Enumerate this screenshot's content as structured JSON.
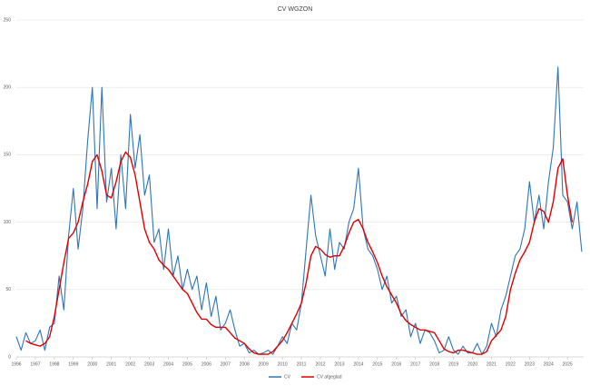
{
  "chart_data": {
    "type": "line",
    "title": "CV WGZON",
    "x": [
      1996,
      1996.25,
      1996.5,
      1996.75,
      1997,
      1997.25,
      1997.5,
      1997.75,
      1998,
      1998.25,
      1998.5,
      1998.75,
      1999,
      1999.25,
      1999.5,
      1999.75,
      2000,
      2000.25,
      2000.5,
      2000.75,
      2001,
      2001.25,
      2001.5,
      2001.75,
      2002,
      2002.25,
      2002.5,
      2002.75,
      2003,
      2003.25,
      2003.5,
      2003.75,
      2004,
      2004.25,
      2004.5,
      2004.75,
      2005,
      2005.25,
      2005.5,
      2005.75,
      2006,
      2006.25,
      2006.5,
      2006.75,
      2007,
      2007.25,
      2007.5,
      2007.75,
      2008,
      2008.25,
      2008.5,
      2008.75,
      2009,
      2009.25,
      2009.5,
      2009.75,
      2010,
      2010.25,
      2010.5,
      2010.75,
      2011,
      2011.25,
      2011.5,
      2011.75,
      2012,
      2012.25,
      2012.5,
      2012.75,
      2013,
      2013.25,
      2013.5,
      2013.75,
      2014,
      2014.25,
      2014.5,
      2014.75,
      2015,
      2015.25,
      2015.5,
      2015.75,
      2016,
      2016.25,
      2016.5,
      2016.75,
      2017,
      2017.25,
      2017.5,
      2017.75,
      2018,
      2018.25,
      2018.5,
      2018.75,
      2019,
      2019.25,
      2019.5,
      2019.75,
      2020,
      2020.25,
      2020.5,
      2020.75,
      2021,
      2021.25,
      2021.5,
      2021.75,
      2022,
      2022.25,
      2022.5,
      2022.75,
      2023,
      2023.25,
      2023.5,
      2023.75,
      2024,
      2024.25,
      2024.5,
      2024.75,
      2025,
      2025.25,
      2025.5,
      2025.75
    ],
    "series": [
      {
        "name": "CV",
        "color": "#2e75b6",
        "values": [
          15,
          5,
          18,
          10,
          12,
          20,
          5,
          22,
          25,
          60,
          35,
          90,
          125,
          80,
          110,
          160,
          200,
          110,
          200,
          115,
          140,
          95,
          150,
          110,
          180,
          140,
          165,
          120,
          135,
          85,
          95,
          65,
          95,
          60,
          75,
          50,
          65,
          50,
          60,
          35,
          55,
          30,
          45,
          20,
          25,
          35,
          20,
          8,
          10,
          3,
          5,
          2,
          3,
          5,
          2,
          8,
          15,
          10,
          25,
          20,
          40,
          80,
          120,
          90,
          75,
          60,
          95,
          65,
          85,
          80,
          100,
          110,
          140,
          95,
          80,
          75,
          65,
          50,
          60,
          40,
          45,
          30,
          35,
          15,
          25,
          10,
          20,
          18,
          12,
          3,
          5,
          15,
          5,
          2,
          8,
          3,
          3,
          10,
          2,
          8,
          25,
          15,
          35,
          45,
          60,
          75,
          80,
          95,
          130,
          100,
          120,
          95,
          130,
          155,
          215,
          120,
          115,
          95,
          115,
          78
        ]
      },
      {
        "name": "CV afgeglad",
        "color": "#e00000",
        "values": [
          null,
          null,
          12,
          10,
          9,
          8,
          10,
          15,
          30,
          50,
          70,
          88,
          92,
          100,
          115,
          128,
          145,
          150,
          138,
          120,
          118,
          130,
          145,
          152,
          148,
          135,
          115,
          95,
          85,
          80,
          72,
          68,
          65,
          60,
          55,
          50,
          47,
          40,
          33,
          28,
          28,
          24,
          22,
          22,
          22,
          18,
          14,
          12,
          10,
          6,
          3,
          2,
          2,
          2,
          4,
          8,
          12,
          18,
          25,
          32,
          40,
          55,
          75,
          82,
          80,
          76,
          74,
          75,
          75,
          82,
          92,
          100,
          102,
          95,
          85,
          78,
          70,
          60,
          52,
          46,
          40,
          32,
          27,
          24,
          22,
          20,
          20,
          19,
          18,
          12,
          6,
          4,
          3,
          5,
          5,
          4,
          3,
          2,
          2,
          4,
          12,
          16,
          20,
          30,
          50,
          62,
          72,
          78,
          85,
          100,
          110,
          108,
          100,
          115,
          140,
          147,
          120,
          100,
          null,
          null
        ]
      }
    ],
    "xlim": [
      1996,
      2025.85
    ],
    "xticks": [
      1996,
      1997,
      1998,
      1999,
      2000,
      2001,
      2002,
      2003,
      2004,
      2005,
      2006,
      2007,
      2008,
      2009,
      2010,
      2011,
      2012,
      2013,
      2014,
      2015,
      2016,
      2017,
      2018,
      2019,
      2020,
      2021,
      2022,
      2023,
      2024,
      2025
    ],
    "ylim": [
      0,
      250
    ],
    "yticks": [
      0,
      50,
      100,
      150,
      200,
      250
    ],
    "grid": true,
    "legend": "bottom"
  }
}
